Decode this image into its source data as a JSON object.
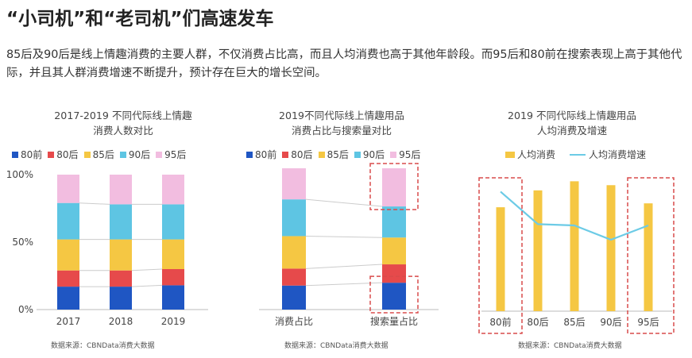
{
  "header": {
    "title": "“小司机”和“老司机”们高速发车",
    "description": "85后及90后是线上情趣消费的主要人群，不仅消费占比高，而且人均消费也高于其他年龄段。而95后和80前在搜索表现上高于其他代际，并且其人群消费增速不断提升，预计存在巨大的增长空间。"
  },
  "colors": {
    "80前": "#1f56c3",
    "80后": "#e64a4b",
    "85后": "#f5c743",
    "90后": "#5ec5e3",
    "95后": "#f2bde0",
    "bar_yellow": "#f5c743",
    "growth_line": "#6ccbe6",
    "highlight_box": "#d94b4b"
  },
  "chart_data": [
    {
      "type": "bar",
      "stacked": true,
      "title_lines": [
        "2017-2019 不同代际线上情趣",
        "消费人数对比"
      ],
      "categories": [
        "2017",
        "2018",
        "2019"
      ],
      "series": [
        {
          "name": "80前",
          "values": [
            17,
            17,
            18
          ]
        },
        {
          "name": "80后",
          "values": [
            12,
            12,
            12
          ]
        },
        {
          "name": "85后",
          "values": [
            23,
            23,
            22
          ]
        },
        {
          "name": "90后",
          "values": [
            27,
            26,
            26
          ]
        },
        {
          "name": "95后",
          "values": [
            21,
            22,
            22
          ]
        }
      ],
      "yticks": [
        "0%",
        "50%",
        "100%"
      ],
      "ylim": [
        0,
        100
      ],
      "source": "数据来源：CBNData消费大数据"
    },
    {
      "type": "bar",
      "stacked": true,
      "title_lines": [
        "2019不同代际线上情趣用品",
        "消费占比与搜索量对比"
      ],
      "categories": [
        "消费占比",
        "搜索量占比"
      ],
      "series": [
        {
          "name": "80前",
          "values": [
            17,
            19
          ]
        },
        {
          "name": "80后",
          "values": [
            12,
            13
          ]
        },
        {
          "name": "85后",
          "values": [
            23,
            19
          ]
        },
        {
          "name": "90后",
          "values": [
            26,
            22
          ]
        },
        {
          "name": "95后",
          "values": [
            22,
            27
          ]
        }
      ],
      "ylim": [
        0,
        100
      ],
      "source": "数据来源：CBNData消费大数据"
    },
    {
      "type": "bar",
      "title_lines": [
        "2019 不同代际线上情趣用品",
        "人均消费及增速"
      ],
      "categories": [
        "80前",
        "80后",
        "85后",
        "90后",
        "95后"
      ],
      "series": [
        {
          "name": "人均消费",
          "type": "bar",
          "values": [
            80,
            93,
            100,
            97,
            83
          ]
        },
        {
          "name": "人均消费增速",
          "type": "line",
          "values": [
            92,
            67,
            66,
            55,
            66
          ]
        }
      ],
      "ylim": [
        0,
        110
      ],
      "source": "数据来源：CBNData消费大数据"
    }
  ]
}
